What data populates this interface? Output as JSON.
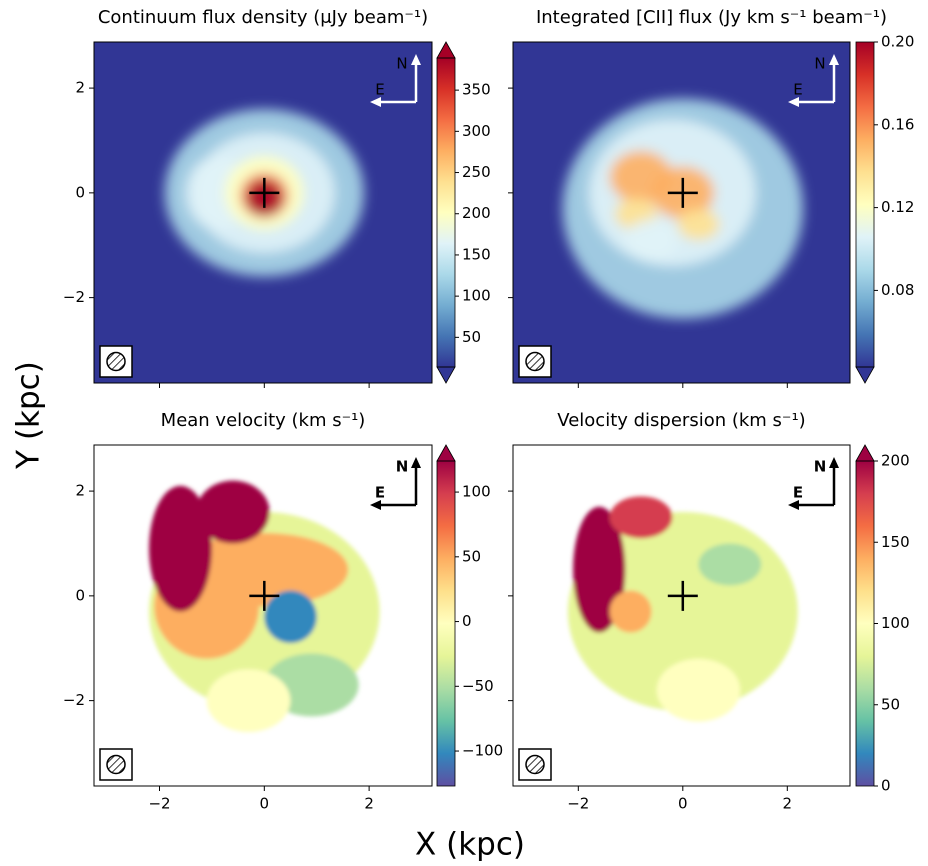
{
  "figure": {
    "xlabel": "X (kpc)",
    "ylabel": "Y (kpc)"
  },
  "chart_data": [
    {
      "type": "heatmap",
      "title": "Continuum flux density (μJy beam⁻¹)",
      "xlim": [
        -3.25,
        3.2
      ],
      "ylim": [
        -3.63,
        2.88
      ],
      "xticks": [
        -2,
        0,
        2
      ],
      "yticks": [
        {
          "value": -2,
          "label": "−2"
        },
        {
          "value": 0,
          "label": "0"
        },
        2
      ],
      "tick_labels": {
        "x": false,
        "y": true
      },
      "colorbar": {
        "colormap": "RdYlBu_r",
        "clim": [
          14,
          389
        ],
        "extend": "both",
        "ticks": [
          50,
          100,
          150,
          200,
          250,
          300,
          350
        ]
      },
      "compass": {
        "north": "N",
        "east": "E"
      },
      "marker": {
        "x": 0,
        "y": 0
      }
    },
    {
      "type": "heatmap",
      "title": "Integrated [CII] flux (Jy km s⁻¹ beam⁻¹)",
      "xlim": [
        -3.25,
        3.2
      ],
      "ylim": [
        -3.63,
        2.88
      ],
      "xticks": [
        -2,
        0,
        2
      ],
      "yticks": [
        -2,
        0,
        2
      ],
      "tick_labels": {
        "x": false,
        "y": false
      },
      "colorbar": {
        "colormap": "RdYlBu_r",
        "clim": [
          0.043,
          0.2
        ],
        "extend": "min",
        "ticks": [
          0.08,
          0.12,
          0.16,
          {
            "value": 0.2,
            "label": "0.20"
          }
        ]
      },
      "compass": {
        "north": "N",
        "east": "E"
      },
      "marker": {
        "x": 0,
        "y": 0
      }
    },
    {
      "type": "heatmap",
      "title": "Mean velocity (km s⁻¹)",
      "xlim": [
        -3.25,
        3.2
      ],
      "ylim": [
        -3.63,
        2.88
      ],
      "xticks": [
        {
          "value": -2,
          "label": "−2"
        },
        {
          "value": 0,
          "label": "0"
        },
        2
      ],
      "yticks": [
        {
          "value": -2,
          "label": "−2"
        },
        {
          "value": 0,
          "label": "0"
        },
        2
      ],
      "tick_labels": {
        "x": true,
        "y": true
      },
      "colorbar": {
        "colormap": "Spectral_r",
        "clim": [
          -127,
          124
        ],
        "extend": "max",
        "ticks": [
          {
            "value": -100,
            "label": "−100"
          },
          {
            "value": -50,
            "label": "−50"
          },
          0,
          50,
          100
        ]
      },
      "compass": {
        "north": "N",
        "east": "E"
      },
      "marker": {
        "x": 0,
        "y": 0
      }
    },
    {
      "type": "heatmap",
      "title": "Velocity dispersion (km s⁻¹)",
      "xlim": [
        -3.25,
        3.2
      ],
      "ylim": [
        -3.63,
        2.88
      ],
      "xticks": [
        {
          "value": -2,
          "label": "−2"
        },
        {
          "value": 0,
          "label": "0"
        },
        2
      ],
      "yticks": [
        -2,
        0,
        2
      ],
      "tick_labels": {
        "x": true,
        "y": false
      },
      "colorbar": {
        "colormap": "Spectral_r",
        "clim": [
          0,
          200
        ],
        "extend": "max",
        "ticks": [
          0,
          50,
          100,
          150,
          200
        ]
      },
      "compass": {
        "north": "N",
        "east": "E"
      },
      "marker": {
        "x": 0,
        "y": 0
      }
    }
  ]
}
